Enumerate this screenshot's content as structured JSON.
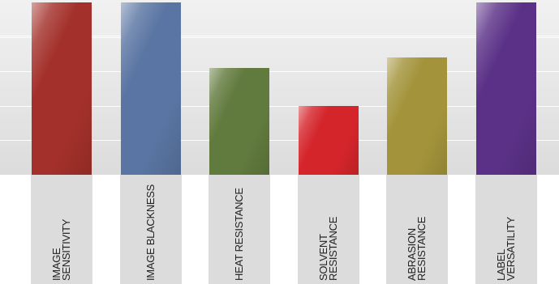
{
  "chart_data": {
    "type": "bar",
    "categories": [
      "IMAGE\nSENSITIVITY",
      "IMAGE BLACKNESS",
      "HEAT RESISTANCE",
      "SOLVENT\nRESISTANCE",
      "ABRASION\nRESISTANCE",
      "LABEL\nVERSATILITY"
    ],
    "values": [
      5,
      5,
      3.1,
      2,
      3.4,
      5
    ],
    "colors": [
      "#a3302a",
      "#5a75a3",
      "#617a3d",
      "#d4252b",
      "#a3943b",
      "#5b3187"
    ],
    "ylim": [
      0,
      5
    ],
    "grid": true,
    "title": "",
    "xlabel": "",
    "ylabel": ""
  }
}
